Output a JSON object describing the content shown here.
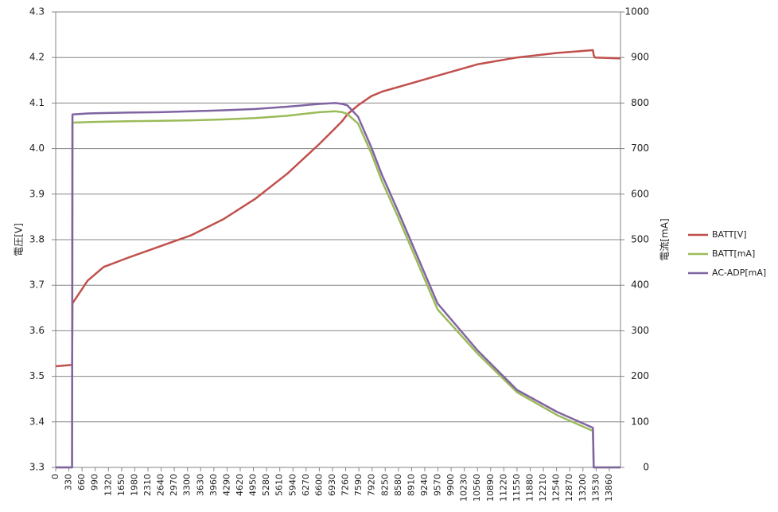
{
  "chart_data": {
    "type": "line",
    "x": [
      0,
      410,
      420,
      800,
      1200,
      1800,
      2600,
      3400,
      4200,
      5000,
      5800,
      6600,
      7000,
      7170,
      7300,
      7570,
      7900,
      8170,
      8570,
      9560,
      10560,
      11550,
      12550,
      13450,
      13470,
      13500,
      14140
    ],
    "xlim": [
      0,
      14140
    ],
    "xticks": [
      0,
      330,
      660,
      990,
      1320,
      1650,
      1980,
      2310,
      2640,
      2970,
      3300,
      3630,
      3960,
      4290,
      4620,
      4950,
      5280,
      5610,
      5940,
      6270,
      6600,
      6930,
      7260,
      7590,
      7920,
      8250,
      8580,
      8910,
      9240,
      9570,
      9900,
      10230,
      10560,
      10890,
      11220,
      11550,
      11880,
      12210,
      12540,
      12870,
      13200,
      13530,
      13860
    ],
    "ylim": [
      3.3,
      4.3
    ],
    "yticks": [
      3.3,
      3.4,
      3.5,
      3.6,
      3.7,
      3.8,
      3.9,
      {
        "value": 4,
        "label": "4.0"
      },
      4.1,
      4.2,
      4.3
    ],
    "y2lim": [
      0,
      1000
    ],
    "y2ticks": [
      0,
      100,
      200,
      300,
      400,
      500,
      600,
      700,
      800,
      900,
      1000
    ],
    "ylabel": "電圧[V]",
    "y2label": "電流[mA]",
    "grid": true,
    "legend": "right",
    "series": [
      {
        "name": "BATT[V]",
        "color": "#c0504d",
        "values": [
          3.522,
          3.525,
          3.66,
          3.71,
          3.74,
          3.76,
          3.785,
          3.81,
          3.845,
          3.89,
          3.945,
          4.01,
          4.045,
          4.06,
          4.075,
          4.095,
          4.115,
          4.125,
          4.135,
          4.16,
          4.185,
          4.2,
          4.21,
          4.216,
          4.205,
          4.2,
          4.198
        ]
      },
      {
        "name": "BATT[mA]",
        "color": "#9bbb59",
        "axis": "y2",
        "values": [
          0,
          0,
          757,
          758,
          759,
          760,
          761,
          762,
          764,
          767,
          772,
          780,
          782,
          780,
          776,
          755,
          690,
          628,
          550,
          347,
          250,
          165,
          115,
          80,
          0,
          0,
          0
        ]
      },
      {
        "name": "AC-ADP[mA]",
        "color": "#8064a2",
        "axis": "y2",
        "values": [
          0,
          0,
          775,
          777,
          778,
          779,
          780,
          782,
          784,
          787,
          792,
          798,
          800,
          798,
          795,
          770,
          703,
          642,
          563,
          360,
          257,
          170,
          122,
          87,
          0,
          0,
          0
        ]
      }
    ]
  }
}
